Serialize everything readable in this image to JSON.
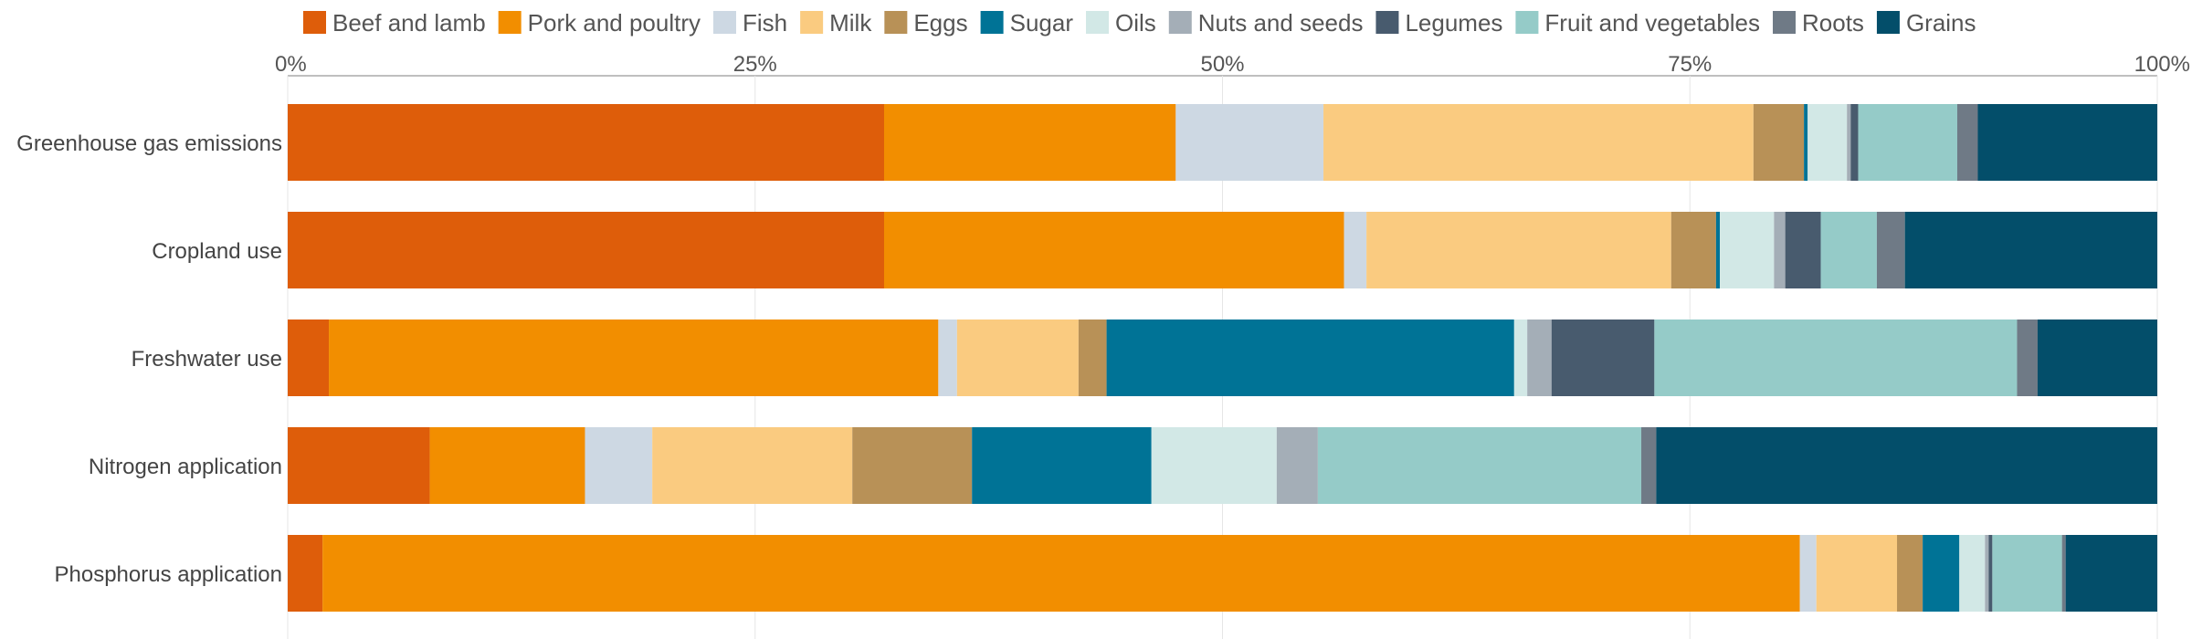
{
  "chart_data": {
    "type": "bar",
    "orientation": "horizontal",
    "stacked": true,
    "normalized": true,
    "title": "",
    "xlabel": "",
    "ylabel": "",
    "xlim": [
      0,
      100
    ],
    "x_ticks": [
      "0%",
      "25%",
      "50%",
      "75%",
      "100%"
    ],
    "grid": true,
    "legend_position": "top",
    "categories": [
      "Greenhouse gas emissions",
      "Cropland use",
      "Freshwater use",
      "Nitrogen application",
      "Phosphorus application"
    ],
    "series": [
      {
        "name": "Beef and lamb",
        "color": "#de5d0a",
        "values": [
          31.9,
          31.9,
          2.2,
          7.6,
          1.9
        ]
      },
      {
        "name": "Pork and poultry",
        "color": "#f28e00",
        "values": [
          15.6,
          24.6,
          32.6,
          8.3,
          80.6
        ]
      },
      {
        "name": "Fish",
        "color": "#cdd8e3",
        "values": [
          7.9,
          1.2,
          1.0,
          3.6,
          0.9
        ]
      },
      {
        "name": "Milk",
        "color": "#facb80",
        "values": [
          23.0,
          16.3,
          6.5,
          10.7,
          4.4
        ]
      },
      {
        "name": "Eggs",
        "color": "#b89157",
        "values": [
          2.7,
          2.4,
          1.5,
          6.4,
          1.4
        ]
      },
      {
        "name": "Sugar",
        "color": "#007396",
        "values": [
          0.2,
          0.2,
          21.8,
          9.6,
          2.0
        ]
      },
      {
        "name": "Oils",
        "color": "#d2e8e6",
        "values": [
          2.1,
          2.9,
          0.7,
          6.7,
          1.4
        ]
      },
      {
        "name": "Nuts and seeds",
        "color": "#a4aeb7",
        "values": [
          0.2,
          0.6,
          1.3,
          2.2,
          0.2
        ]
      },
      {
        "name": "Legumes",
        "color": "#485b6e",
        "values": [
          0.4,
          1.9,
          5.5,
          0.0,
          0.2
        ]
      },
      {
        "name": "Fruit and vegetables",
        "color": "#95cbc8",
        "values": [
          5.3,
          3.0,
          19.4,
          17.3,
          3.8
        ]
      },
      {
        "name": "Roots",
        "color": "#6f7a86",
        "values": [
          1.1,
          1.5,
          1.1,
          0.8,
          0.2
        ]
      },
      {
        "name": "Grains",
        "color": "#034e6a",
        "values": [
          9.6,
          13.5,
          6.4,
          26.8,
          5.0
        ]
      }
    ]
  }
}
